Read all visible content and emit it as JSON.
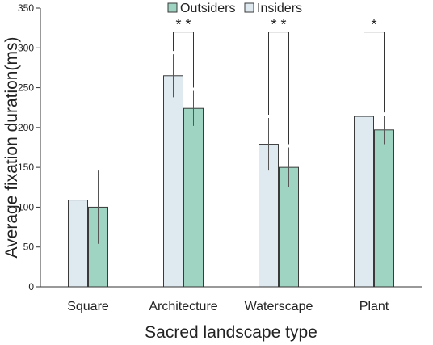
{
  "chart_data": {
    "type": "bar",
    "xlabel": "Sacred landscape type",
    "ylabel": "Average fixation duration(ms)",
    "ylim": [
      0,
      350
    ],
    "yticks": [
      0,
      50,
      100,
      150,
      200,
      250,
      300,
      350
    ],
    "categories": [
      "Square",
      "Architecture",
      "Waterscape",
      "Plant"
    ],
    "legend_position": "top-center",
    "series": [
      {
        "name": "Insiders",
        "color": "#dfe9f0",
        "values": [
          109,
          265,
          179,
          214
        ],
        "error": [
          58,
          27,
          33,
          27
        ]
      },
      {
        "name": "Outsiders",
        "color": "#9fd4c3",
        "values": [
          100,
          224,
          150,
          197
        ],
        "error": [
          46,
          22,
          25,
          18
        ]
      }
    ],
    "legend_order": [
      "Outsiders",
      "Insiders"
    ],
    "significance": [
      {
        "category": "Architecture",
        "label": "* *",
        "bracket_y": 320
      },
      {
        "category": "Waterscape",
        "label": "* *",
        "bracket_y": 320
      },
      {
        "category": "Plant",
        "label": "*",
        "bracket_y": 320
      }
    ]
  }
}
